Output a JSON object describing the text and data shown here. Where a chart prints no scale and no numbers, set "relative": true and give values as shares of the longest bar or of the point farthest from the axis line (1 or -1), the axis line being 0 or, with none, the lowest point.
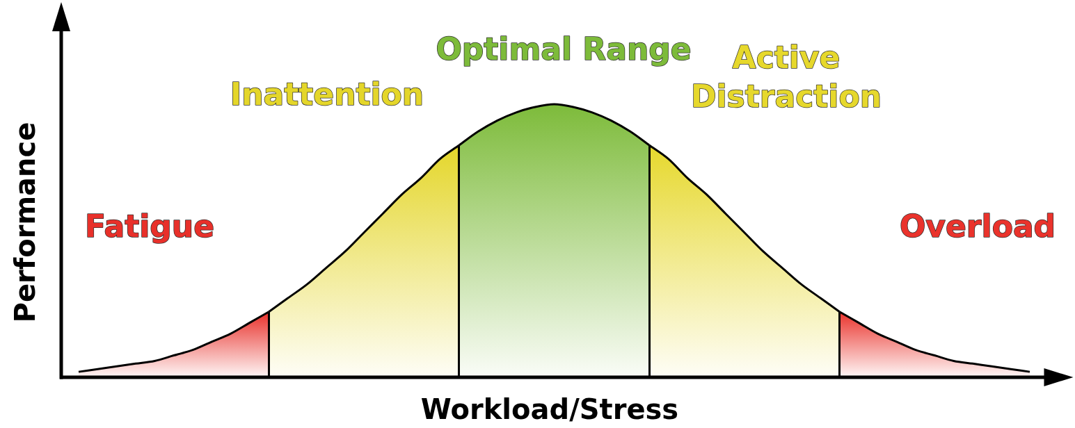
{
  "chart_data": {
    "type": "area",
    "relative": true,
    "tick_labels": false,
    "legend": false,
    "xlabel": "Workload/Stress",
    "ylabel": "Performance",
    "categories": [
      null,
      null,
      null,
      null,
      null,
      null,
      null,
      null,
      null,
      null,
      null,
      null,
      null,
      null,
      null,
      null,
      null,
      null,
      null,
      null,
      null,
      null,
      null,
      null,
      null,
      null,
      null,
      null,
      null,
      null,
      null,
      null,
      null,
      null,
      null,
      null,
      null,
      null,
      null,
      null,
      null,
      null,
      null,
      null,
      null,
      null,
      null,
      null,
      null,
      null,
      null
    ],
    "series": [
      {
        "name": "Fatigue",
        "color": "#e8302a",
        "values": [
          0.02,
          0.03,
          0.04,
          0.05,
          0.06,
          0.08,
          0.1,
          0.13,
          0.16,
          0.2,
          0.24,
          null,
          null,
          null,
          null,
          null,
          null,
          null,
          null,
          null,
          null,
          null,
          null,
          null,
          null,
          null,
          null,
          null,
          null,
          null,
          null,
          null,
          null,
          null,
          null,
          null,
          null,
          null,
          null,
          null,
          null,
          null,
          null,
          null,
          null,
          null,
          null,
          null,
          null,
          null,
          null
        ]
      },
      {
        "name": "Inattention",
        "color": "#e4d62a",
        "values": [
          null,
          null,
          null,
          null,
          null,
          null,
          null,
          null,
          null,
          null,
          0.24,
          0.29,
          0.34,
          0.4,
          0.46,
          0.53,
          0.6,
          0.67,
          0.73,
          0.8,
          0.85,
          null,
          null,
          null,
          null,
          null,
          null,
          null,
          null,
          null,
          null,
          null,
          null,
          null,
          null,
          null,
          null,
          null,
          null,
          null,
          null,
          null,
          null,
          null,
          null,
          null,
          null,
          null,
          null,
          null,
          null
        ]
      },
      {
        "name": "Optimal Range",
        "color": "#7dbb3a",
        "values": [
          null,
          null,
          null,
          null,
          null,
          null,
          null,
          null,
          null,
          null,
          null,
          null,
          null,
          null,
          null,
          null,
          null,
          null,
          null,
          null,
          0.85,
          0.9,
          0.94,
          0.97,
          0.99,
          1,
          0.99,
          0.97,
          0.94,
          0.9,
          0.85,
          null,
          null,
          null,
          null,
          null,
          null,
          null,
          null,
          null,
          null,
          null,
          null,
          null,
          null,
          null,
          null,
          null,
          null,
          null,
          null
        ]
      },
      {
        "name": "Active Distraction",
        "color": "#e6d82c",
        "values": [
          null,
          null,
          null,
          null,
          null,
          null,
          null,
          null,
          null,
          null,
          null,
          null,
          null,
          null,
          null,
          null,
          null,
          null,
          null,
          null,
          null,
          null,
          null,
          null,
          null,
          null,
          null,
          null,
          null,
          null,
          0.85,
          0.8,
          0.73,
          0.67,
          0.6,
          0.53,
          0.46,
          0.4,
          0.34,
          0.29,
          0.24,
          null,
          null,
          null,
          null,
          null,
          null,
          null,
          null,
          null,
          null
        ]
      },
      {
        "name": "Overload",
        "color": "#ea332c",
        "values": [
          null,
          null,
          null,
          null,
          null,
          null,
          null,
          null,
          null,
          null,
          null,
          null,
          null,
          null,
          null,
          null,
          null,
          null,
          null,
          null,
          null,
          null,
          null,
          null,
          null,
          null,
          null,
          null,
          null,
          null,
          null,
          null,
          null,
          null,
          null,
          null,
          null,
          null,
          null,
          null,
          0.24,
          0.2,
          0.16,
          0.13,
          0.1,
          0.08,
          0.06,
          0.05,
          0.04,
          0.03,
          0.02
        ]
      }
    ]
  }
}
